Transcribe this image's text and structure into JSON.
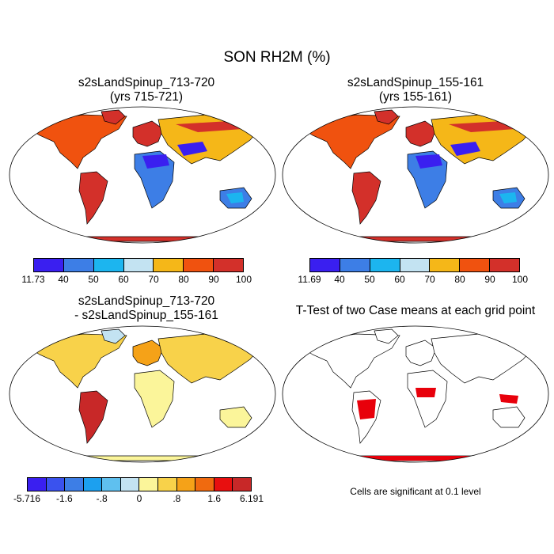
{
  "figure": {
    "title": "SON RH2M (%)"
  },
  "panels": [
    {
      "id": "case1",
      "title_line1": "s2sLandSpinup_713-720",
      "title_line2": "(yrs 715-721)",
      "colorbar": {
        "labels": [
          "11.73",
          "40",
          "50",
          "60",
          "70",
          "80",
          "90",
          "100"
        ],
        "colors": [
          "#3a1ff0",
          "#3d7ee6",
          "#1cb5ef",
          "#c3e3f2",
          "#f5b718",
          "#f0520f",
          "#d3302a"
        ]
      }
    },
    {
      "id": "case2",
      "title_line1": "s2sLandSpinup_155-161",
      "title_line2": "(yrs 155-161)",
      "colorbar": {
        "labels": [
          "11.69",
          "40",
          "50",
          "60",
          "70",
          "80",
          "90",
          "100"
        ],
        "colors": [
          "#3a1ff0",
          "#3d7ee6",
          "#1cb5ef",
          "#c3e3f2",
          "#f5b718",
          "#f0520f",
          "#d3302a"
        ]
      }
    },
    {
      "id": "difference",
      "title_line1": "s2sLandSpinup_713-720",
      "title_line2": "- s2sLandSpinup_155-161",
      "colorbar": {
        "labels": [
          "-5.716",
          "-1.6",
          "-.8",
          "0",
          ".8",
          "1.6",
          "6.191"
        ],
        "colors": [
          "#3a1ff0",
          "#3a52ee",
          "#3d7ee6",
          "#1ca0ef",
          "#5fc0ef",
          "#c3e3f2",
          "#fbf59a",
          "#f8d24a",
          "#f5a218",
          "#f06a0f",
          "#e80f0f",
          "#c82828"
        ]
      }
    },
    {
      "id": "ttest",
      "title_line1": "T-Test of two Case means at each grid point",
      "note": "Cells are significant at 0.1 level",
      "significant_color": "#e8000b"
    }
  ]
}
